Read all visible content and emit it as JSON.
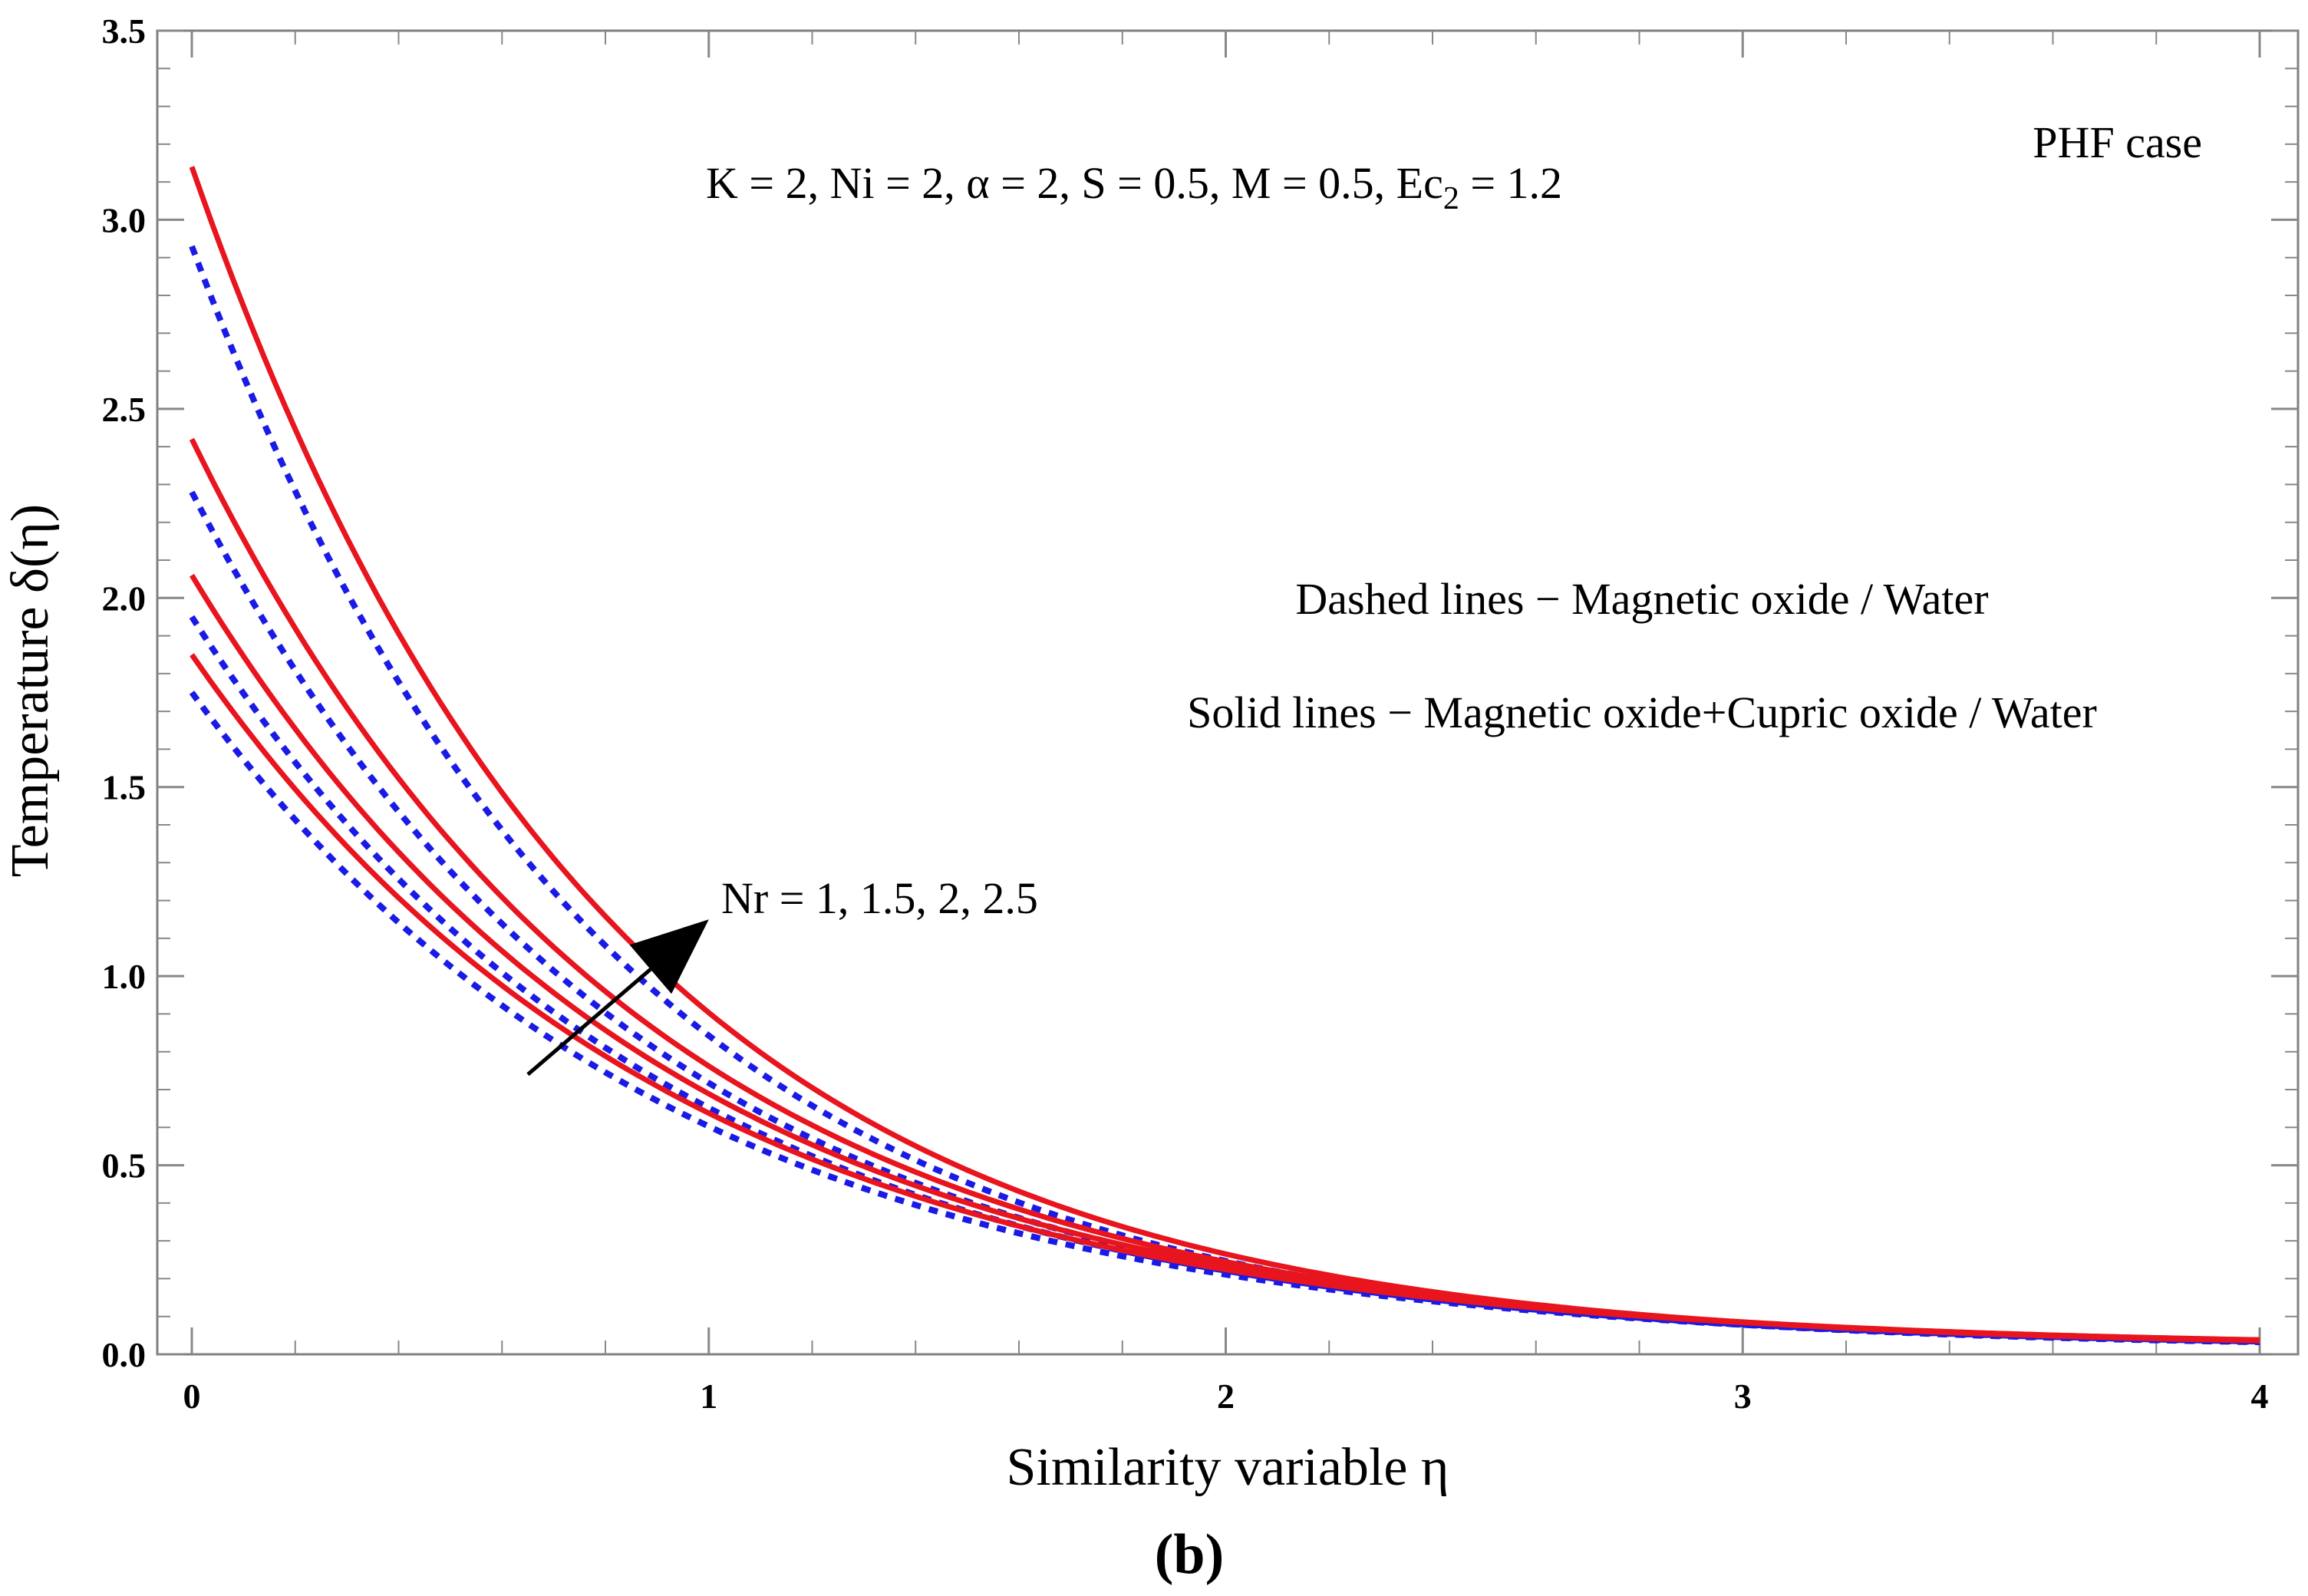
{
  "chart_data": {
    "type": "line",
    "title": "",
    "xlabel": "Similarity variable η",
    "ylabel": "Temperature δ(η)",
    "xlim": [
      0,
      4
    ],
    "ylim": [
      0,
      3.5
    ],
    "x_ticks": [
      "0",
      "1",
      "2",
      "3",
      "4"
    ],
    "y_ticks": [
      "0.0",
      "0.5",
      "1.0",
      "1.5",
      "2.0",
      "2.5",
      "3.0",
      "3.5"
    ],
    "grid": false,
    "panel_label": "(b)",
    "annotations": {
      "case": "PHF case",
      "params": "K = 2,  Ni = 2,  α = 2, S = 0.5, M = 0.5,  Ec",
      "params_sub": "2",
      "params_tail": " = 1.2",
      "dashed_legend": "Dashed lines − Magnetic oxide / Water",
      "solid_legend": "Solid lines − Magnetic oxide+Cupric oxide / Water",
      "arrow_label": "Nr = 1, 1.5, 2, 2.5"
    },
    "series": [
      {
        "name": "Solid Nr=1",
        "style": "solid",
        "color": "#e8141e",
        "y0": 1.85,
        "k": 1.07,
        "y_end": 0.025
      },
      {
        "name": "Solid Nr=1.5",
        "style": "solid",
        "color": "#e8141e",
        "y0": 2.06,
        "k": 1.1,
        "y_end": 0.025
      },
      {
        "name": "Solid Nr=2",
        "style": "solid",
        "color": "#e8141e",
        "y0": 2.42,
        "k": 1.16,
        "y_end": 0.028
      },
      {
        "name": "Solid Nr=2.5",
        "style": "solid",
        "color": "#e8141e",
        "y0": 3.14,
        "k": 1.25,
        "y_end": 0.03
      },
      {
        "name": "Dashed Nr=1",
        "style": "dashed",
        "color": "#1a1ae6",
        "y0": 1.75,
        "k": 1.07,
        "y_end": 0.02
      },
      {
        "name": "Dashed Nr=1.5",
        "style": "dashed",
        "color": "#1a1ae6",
        "y0": 1.95,
        "k": 1.1,
        "y_end": 0.02
      },
      {
        "name": "Dashed Nr=2",
        "style": "dashed",
        "color": "#1a1ae6",
        "y0": 2.28,
        "k": 1.16,
        "y_end": 0.022
      },
      {
        "name": "Dashed Nr=2.5",
        "style": "dashed",
        "color": "#1a1ae6",
        "y0": 2.93,
        "k": 1.25,
        "y_end": 0.025
      }
    ],
    "arrow": {
      "from": [
        0.65,
        0.74
      ],
      "to": [
        1.0,
        1.15
      ]
    }
  }
}
